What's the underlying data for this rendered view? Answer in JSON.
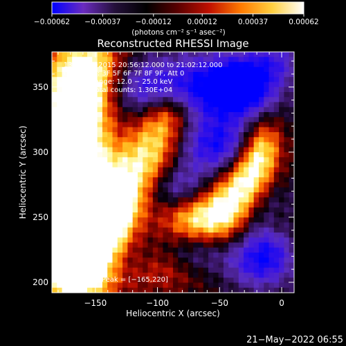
{
  "chart_data": {
    "type": "heatmap",
    "title": "Reconstructed RHESSI Image",
    "xlabel": "Heliocentric X (arcsec)",
    "ylabel": "Heliocentric Y (arcsec)",
    "xlim": [
      -185,
      10
    ],
    "ylim": [
      192,
      377
    ],
    "x_ticks": [
      -150,
      -100,
      -50,
      0
    ],
    "x_tick_labels": [
      "−150",
      "−100",
      "−50",
      "0"
    ],
    "y_ticks": [
      200,
      250,
      300,
      350
    ],
    "y_tick_labels": [
      "200",
      "250",
      "300",
      "350"
    ],
    "grid": false,
    "colorbar": {
      "ticks": [
        -0.00062,
        -0.00037,
        -0.00012,
        0.00012,
        0.00037,
        0.00062
      ],
      "tick_labels": [
        "−0.00062",
        "−0.00037",
        "−0.00012",
        "0.00012",
        "0.00037",
        "0.00062"
      ],
      "unit_label": "(photons cm⁻² s⁻¹ asec⁻²)",
      "range": [
        -0.00062,
        0.00062
      ],
      "colors": [
        "#0000ff",
        "#6a2bbf",
        "#24103a",
        "#000000",
        "#5a0000",
        "#c01000",
        "#ff7a00",
        "#ffd040",
        "#ffffff"
      ]
    },
    "annotations": {
      "time_range": "13−May−2015 20:56:12.000 to 21:02:12.000",
      "detectors": "Detectors: 3F 5F 6F 7F 8F 9F, Att 0",
      "energy_range": "Energy Range: 12.0 − 25.0 keV",
      "algorithm": "Clean    Total counts: 1.30E+04",
      "peak": "Position of Peak = [−165,220]"
    },
    "footer_timestamp": "21−May−2022 06:55",
    "peak_position": [
      -165,
      220
    ]
  }
}
